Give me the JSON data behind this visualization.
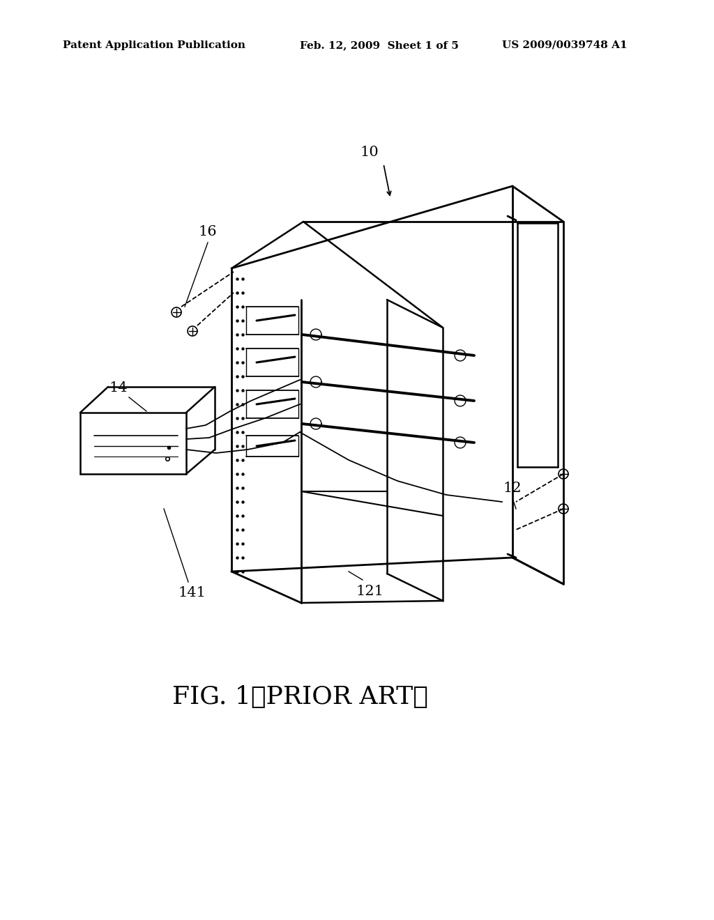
{
  "background_color": "#ffffff",
  "header_left": "Patent Application Publication",
  "header_center": "Feb. 12, 2009  Sheet 1 of 5",
  "header_right": "US 2009/0039748 A1",
  "caption": "FIG. 1 （PRIOR ART）"
}
